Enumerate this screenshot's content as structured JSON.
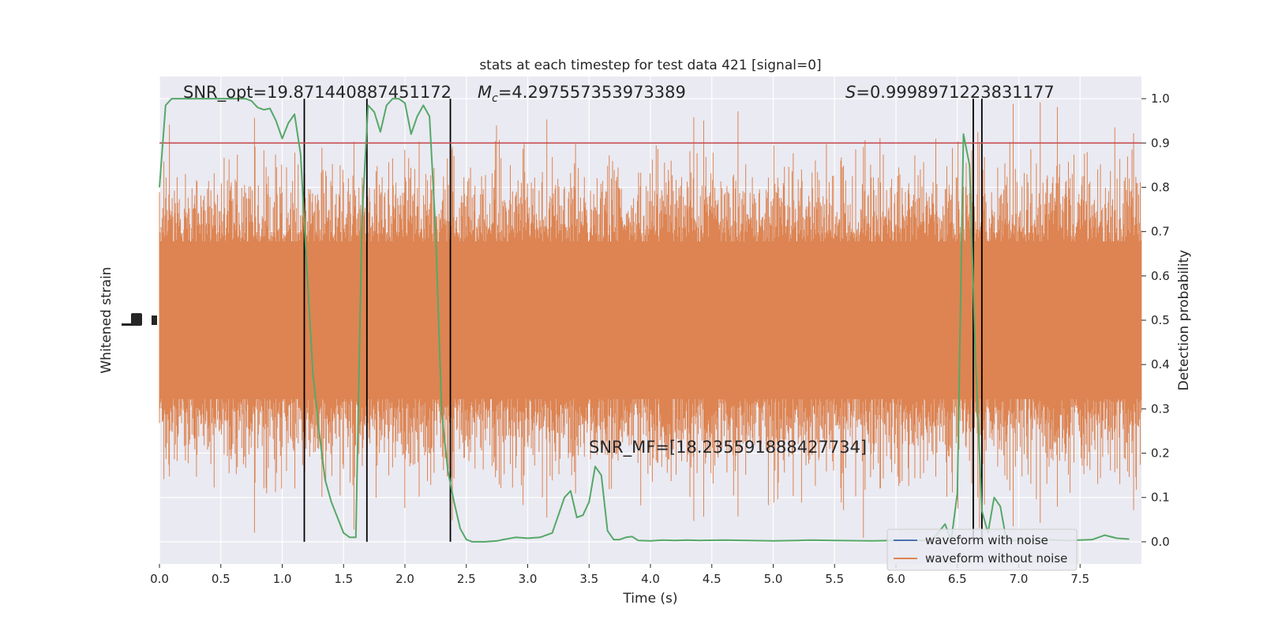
{
  "chart_data": {
    "type": "line",
    "title": "stats at each timestep for test data 421 [signal=0]",
    "xlabel": "Time (s)",
    "ylabel_left": "Whitened strain",
    "ylabel_right": "Detection probability",
    "xlim": [
      0.0,
      8.0
    ],
    "ylim_right": [
      -0.05,
      1.05
    ],
    "x_ticks": [
      "0.0",
      "0.5",
      "1.0",
      "1.5",
      "2.0",
      "2.5",
      "3.0",
      "3.5",
      "4.0",
      "4.5",
      "5.0",
      "5.5",
      "6.0",
      "6.5",
      "7.0",
      "7.5"
    ],
    "y_ticks_right": [
      "0.0",
      "0.1",
      "0.2",
      "0.3",
      "0.4",
      "0.5",
      "0.6",
      "0.7",
      "0.8",
      "0.9",
      "1.0"
    ],
    "grid": true,
    "threshold": 0.9,
    "threshold_color": "#c44e52",
    "vertical_markers": [
      1.18,
      1.69,
      2.37,
      6.63,
      6.7
    ],
    "annotations": [
      {
        "text": "SNR_opt=19.871440887451172",
        "x": 0.2,
        "y": 1.0
      },
      {
        "text": "=4.297557353973389",
        "symbol": "M",
        "subscript": "c",
        "x": 2.6,
        "y": 1.0
      },
      {
        "text": "=0.9998971223831177",
        "symbol": "S",
        "x": 5.6,
        "y": 1.0
      },
      {
        "text": "SNR_MF=[18.235591888427734]",
        "x": 3.5,
        "y": 0.2
      }
    ],
    "legend": {
      "placement": "lower-right",
      "entries": [
        {
          "label": "waveform with noise",
          "color": "#4c72b0"
        },
        {
          "label": "waveform without noise",
          "color": "#dd8452"
        }
      ]
    },
    "series": [
      {
        "color": "#55a868",
        "x": [
          0.0,
          0.05,
          0.1,
          0.15,
          0.2,
          0.25,
          0.3,
          0.35,
          0.4,
          0.45,
          0.5,
          0.55,
          0.6,
          0.65,
          0.7,
          0.75,
          0.8,
          0.85,
          0.9,
          0.95,
          1.0,
          1.05,
          1.1,
          1.15,
          1.2,
          1.25,
          1.3,
          1.35,
          1.4,
          1.45,
          1.5,
          1.55,
          1.6,
          1.65,
          1.7,
          1.75,
          1.8,
          1.85,
          1.9,
          1.95,
          2.0,
          2.05,
          2.1,
          2.15,
          2.2,
          2.25,
          2.3,
          2.35,
          2.4,
          2.45,
          2.5,
          2.55,
          2.6,
          2.65,
          2.7,
          2.75,
          2.8,
          2.9,
          3.0,
          3.1,
          3.2,
          3.3,
          3.35,
          3.4,
          3.45,
          3.5,
          3.55,
          3.6,
          3.65,
          3.7,
          3.75,
          3.8,
          3.85,
          3.9,
          4.0,
          4.05,
          4.1,
          4.2,
          4.3,
          4.4,
          4.6,
          4.8,
          5.0,
          5.2,
          5.3,
          5.5,
          5.8,
          6.0,
          6.1,
          6.2,
          6.3,
          6.4,
          6.45,
          6.5,
          6.55,
          6.6,
          6.65,
          6.7,
          6.75,
          6.8,
          6.85,
          6.9,
          6.95,
          7.0,
          7.05,
          7.1,
          7.2,
          7.4,
          7.6,
          7.7,
          7.8,
          7.9
        ],
        "y": [
          0.8,
          0.985,
          1.0,
          1.0,
          1.0,
          1.0,
          1.0,
          1.0,
          1.0,
          1.0,
          1.0,
          1.0,
          1.0,
          1.0,
          1.0,
          0.995,
          0.98,
          0.975,
          0.978,
          0.95,
          0.91,
          0.945,
          0.965,
          0.875,
          0.62,
          0.38,
          0.25,
          0.14,
          0.09,
          0.055,
          0.02,
          0.01,
          0.01,
          0.73,
          0.985,
          0.97,
          0.925,
          0.985,
          1.0,
          1.0,
          0.99,
          0.92,
          0.96,
          0.985,
          0.96,
          0.7,
          0.29,
          0.16,
          0.09,
          0.03,
          0.005,
          0.0,
          0.0,
          0.0,
          0.001,
          0.002,
          0.005,
          0.01,
          0.008,
          0.01,
          0.02,
          0.1,
          0.115,
          0.055,
          0.06,
          0.09,
          0.17,
          0.15,
          0.025,
          0.005,
          0.005,
          0.01,
          0.012,
          0.003,
          0.002,
          0.003,
          0.004,
          0.003,
          0.004,
          0.003,
          0.004,
          0.003,
          0.002,
          0.003,
          0.004,
          0.003,
          0.002,
          0.003,
          0.004,
          0.003,
          0.005,
          0.04,
          0.003,
          0.11,
          0.92,
          0.85,
          0.4,
          0.07,
          0.02,
          0.1,
          0.08,
          0.003,
          0.003,
          0.003,
          0.002,
          0.003,
          0.005,
          0.003,
          0.005,
          0.015,
          0.008,
          0.006
        ]
      }
    ]
  }
}
